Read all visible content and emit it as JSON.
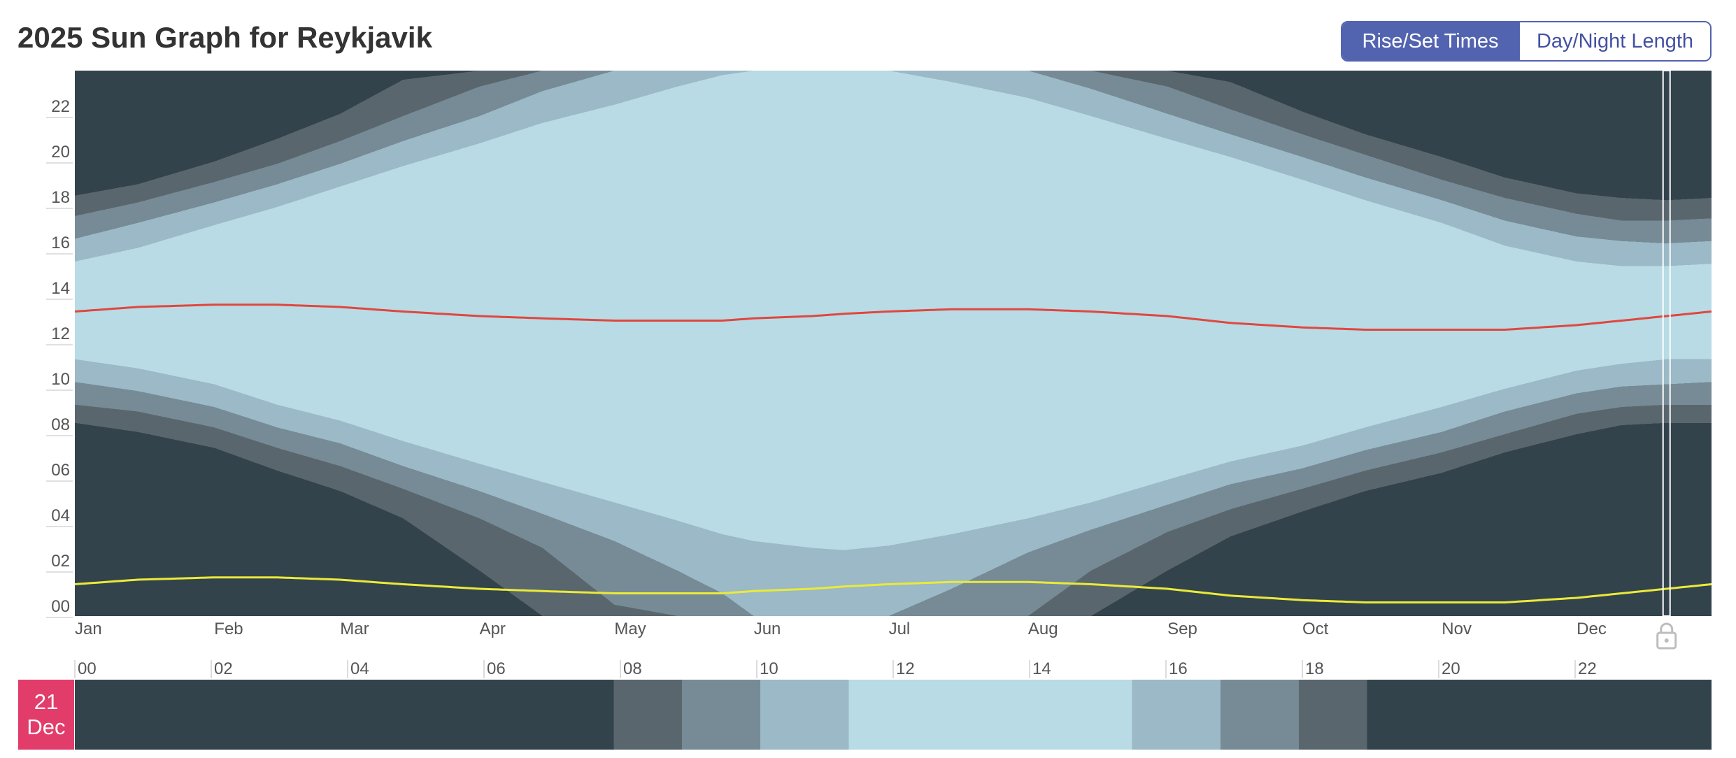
{
  "header": {
    "title": "2025 Sun Graph for Reykjavik",
    "toggle": [
      {
        "label": "Rise/Set Times",
        "active": true
      },
      {
        "label": "Day/Night Length",
        "active": false
      }
    ]
  },
  "colors": {
    "night": "#33434b",
    "astronomical_twilight": "#5a666d",
    "nautical_twilight": "#768b96",
    "civil_twilight": "#9bb9c6",
    "day": "#b8dbe5",
    "solar_noon_line": "#e0473e",
    "solar_midnight_line": "#eaea3a",
    "selected_marker": "#ffffff",
    "date_badge": "#e23c6b",
    "accent": "#5264b0"
  },
  "chart_data": [
    {
      "type": "area",
      "title": "2025 Sun Graph for Reykjavik",
      "x_unit": "day of year",
      "y_unit": "hour of day",
      "xlim": [
        1,
        365
      ],
      "ylim": [
        0,
        24
      ],
      "x_tick_labels": [
        "Jan",
        "Feb",
        "Mar",
        "Apr",
        "May",
        "Jun",
        "Jul",
        "Aug",
        "Sep",
        "Oct",
        "Nov",
        "Dec"
      ],
      "x_tick_days": [
        1,
        32,
        60,
        91,
        121,
        152,
        182,
        213,
        244,
        274,
        305,
        335
      ],
      "y_tick_labels": [
        "00",
        "02",
        "04",
        "06",
        "08",
        "10",
        "12",
        "14",
        "16",
        "18",
        "20",
        "22"
      ],
      "y_tick_values": [
        0,
        2,
        4,
        6,
        8,
        10,
        12,
        14,
        16,
        18,
        20,
        22
      ],
      "day_keys": [
        1,
        15,
        32,
        46,
        60,
        74,
        91,
        105,
        121,
        135,
        145,
        152,
        165,
        172,
        182,
        196,
        213,
        227,
        244,
        258,
        274,
        288,
        305,
        319,
        335,
        345,
        355,
        365
      ],
      "series": [
        {
          "name": "sunrise",
          "values": [
            11.3,
            10.9,
            10.2,
            9.3,
            8.6,
            7.7,
            6.7,
            5.9,
            5.0,
            4.2,
            3.6,
            3.3,
            3.0,
            2.9,
            3.1,
            3.6,
            4.3,
            5.0,
            6.0,
            6.8,
            7.5,
            8.3,
            9.2,
            10.0,
            10.8,
            11.1,
            11.3,
            11.3
          ]
        },
        {
          "name": "sunset",
          "values": [
            15.6,
            16.2,
            17.2,
            18.0,
            18.9,
            19.8,
            20.8,
            21.7,
            22.5,
            23.3,
            23.8,
            24.0,
            24.0,
            24.0,
            24.0,
            23.5,
            22.8,
            22.0,
            21.0,
            20.2,
            19.2,
            18.3,
            17.3,
            16.3,
            15.6,
            15.4,
            15.4,
            15.5
          ]
        },
        {
          "name": "civil_dawn",
          "values": [
            10.3,
            9.9,
            9.2,
            8.3,
            7.6,
            6.6,
            5.5,
            4.5,
            3.3,
            2.0,
            1.0,
            0.0,
            0.0,
            0.0,
            0.0,
            1.2,
            2.8,
            3.8,
            4.9,
            5.8,
            6.5,
            7.3,
            8.1,
            9.0,
            9.8,
            10.1,
            10.2,
            10.3
          ]
        },
        {
          "name": "civil_dusk",
          "values": [
            16.6,
            17.3,
            18.2,
            19.0,
            19.9,
            20.9,
            22.0,
            23.1,
            24.0,
            24.0,
            24.0,
            24.0,
            24.0,
            24.0,
            24.0,
            24.0,
            24.0,
            23.2,
            22.1,
            21.2,
            20.2,
            19.3,
            18.3,
            17.4,
            16.7,
            16.5,
            16.4,
            16.5
          ]
        },
        {
          "name": "nautical_dawn",
          "values": [
            9.3,
            9.0,
            8.3,
            7.4,
            6.6,
            5.6,
            4.3,
            3.0,
            0.5,
            0.0,
            0.0,
            0.0,
            0.0,
            0.0,
            0.0,
            0.0,
            0.0,
            2.0,
            3.7,
            4.7,
            5.6,
            6.4,
            7.2,
            8.0,
            8.9,
            9.2,
            9.3,
            9.3
          ]
        },
        {
          "name": "nautical_dusk",
          "values": [
            17.6,
            18.2,
            19.1,
            19.9,
            20.9,
            22.0,
            23.3,
            24.0,
            24.0,
            24.0,
            24.0,
            24.0,
            24.0,
            24.0,
            24.0,
            24.0,
            24.0,
            24.0,
            23.3,
            22.3,
            21.2,
            20.3,
            19.2,
            18.4,
            17.7,
            17.4,
            17.4,
            17.5
          ]
        },
        {
          "name": "astronomical_dawn",
          "values": [
            8.5,
            8.1,
            7.4,
            6.4,
            5.5,
            4.3,
            2.0,
            0.0,
            0.0,
            0.0,
            0.0,
            0.0,
            0.0,
            0.0,
            0.0,
            0.0,
            0.0,
            0.0,
            2.0,
            3.5,
            4.6,
            5.5,
            6.3,
            7.2,
            8.0,
            8.4,
            8.5,
            8.5
          ]
        },
        {
          "name": "astronomical_dusk",
          "values": [
            18.5,
            19.0,
            20.0,
            21.0,
            22.1,
            23.6,
            24.0,
            24.0,
            24.0,
            24.0,
            24.0,
            24.0,
            24.0,
            24.0,
            24.0,
            24.0,
            24.0,
            24.0,
            24.0,
            23.5,
            22.2,
            21.2,
            20.2,
            19.3,
            18.6,
            18.4,
            18.3,
            18.4
          ]
        },
        {
          "name": "solar_noon",
          "values": [
            13.4,
            13.6,
            13.7,
            13.7,
            13.6,
            13.4,
            13.2,
            13.1,
            13.0,
            13.0,
            13.0,
            13.1,
            13.2,
            13.3,
            13.4,
            13.5,
            13.5,
            13.4,
            13.2,
            12.9,
            12.7,
            12.6,
            12.6,
            12.6,
            12.8,
            13.0,
            13.2,
            13.4
          ]
        },
        {
          "name": "solar_midnight",
          "values": [
            1.4,
            1.6,
            1.7,
            1.7,
            1.6,
            1.4,
            1.2,
            1.1,
            1.0,
            1.0,
            1.0,
            1.1,
            1.2,
            1.3,
            1.4,
            1.5,
            1.5,
            1.4,
            1.2,
            0.9,
            0.7,
            0.6,
            0.6,
            0.6,
            0.8,
            1.0,
            1.2,
            1.4
          ]
        }
      ],
      "selected_day": 355,
      "grid": false,
      "legend": "none"
    },
    {
      "type": "bar",
      "description_label": "selected day light phases",
      "xlim": [
        0,
        24
      ],
      "x_tick_labels": [
        "00",
        "02",
        "04",
        "06",
        "08",
        "10",
        "12",
        "14",
        "16",
        "18",
        "20",
        "22"
      ],
      "x_tick_values": [
        0,
        2,
        4,
        6,
        8,
        10,
        12,
        14,
        16,
        18,
        20,
        22
      ],
      "segments": [
        {
          "phase": "night",
          "start": 0.0,
          "end": 7.9
        },
        {
          "phase": "astronomical_twilight",
          "start": 7.9,
          "end": 8.9
        },
        {
          "phase": "nautical_twilight",
          "start": 8.9,
          "end": 10.05
        },
        {
          "phase": "civil_twilight",
          "start": 10.05,
          "end": 11.35
        },
        {
          "phase": "day",
          "start": 11.35,
          "end": 15.5
        },
        {
          "phase": "civil_twilight",
          "start": 15.5,
          "end": 16.8
        },
        {
          "phase": "nautical_twilight",
          "start": 16.8,
          "end": 17.95
        },
        {
          "phase": "astronomical_twilight",
          "start": 17.95,
          "end": 18.95
        },
        {
          "phase": "night",
          "start": 18.95,
          "end": 24.0
        }
      ]
    }
  ],
  "selected_date": {
    "day": "21",
    "month": "Dec"
  },
  "icons": {
    "lock": "lock-icon"
  }
}
